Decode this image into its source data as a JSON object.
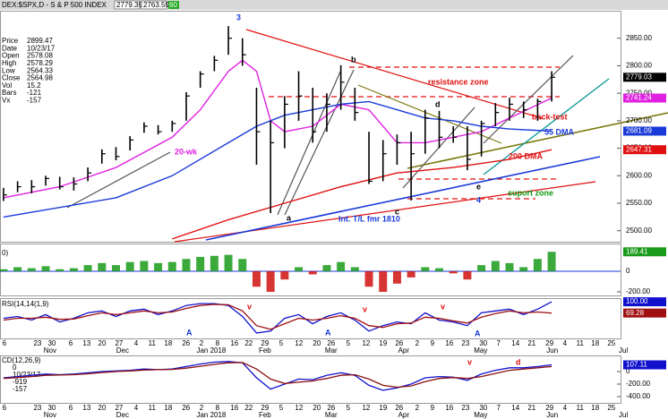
{
  "chart_data": [
    {
      "type": "hlc",
      "title": "DEX:$SPX,D - S & P 500 INDEX",
      "quote": [
        2779.39,
        2763.59
      ],
      "badge": 60,
      "info": [
        {
          "label": "Price",
          "value": 2899.47
        },
        {
          "label": "Date",
          "value": "10/23/17"
        },
        {
          "label": "Open",
          "value": 2578.08
        },
        {
          "label": "High",
          "value": 2578.29
        },
        {
          "label": "Low",
          "value": 2564.33
        },
        {
          "label": "Close",
          "value": 2564.98
        },
        {
          "label": "Vol",
          "value": 15.2
        },
        {
          "label": "Bars",
          "value": -121
        },
        {
          "label": "Vx",
          "value": -157
        }
      ],
      "color": "#000000",
      "high": [
        2578,
        2590,
        2592,
        2600,
        2598,
        2597,
        2615,
        2648,
        2652,
        2672,
        2697,
        2692,
        2700,
        2752,
        2790,
        2818,
        2872,
        2850,
        2760,
        2700,
        2745,
        2790,
        2760,
        2750,
        2801,
        2760,
        2680,
        2665,
        2675,
        2680,
        2720,
        2718,
        2690,
        2690,
        2700,
        2732,
        2742,
        2735,
        2740,
        2790
      ],
      "low": [
        2554,
        2570,
        2568,
        2582,
        2575,
        2573,
        2590,
        2622,
        2628,
        2646,
        2678,
        2675,
        2680,
        2700,
        2760,
        2790,
        2820,
        2800,
        2620,
        2532,
        2650,
        2700,
        2660,
        2680,
        2720,
        2700,
        2585,
        2590,
        2620,
        2555,
        2640,
        2650,
        2660,
        2610,
        2635,
        2690,
        2700,
        2705,
        2700,
        2735
      ],
      "close": [
        2565,
        2580,
        2580,
        2595,
        2580,
        2585,
        2605,
        2640,
        2635,
        2665,
        2690,
        2680,
        2695,
        2745,
        2785,
        2810,
        2850,
        2820,
        2680,
        2660,
        2730,
        2745,
        2680,
        2730,
        2770,
        2715,
        2590,
        2640,
        2660,
        2640,
        2705,
        2670,
        2670,
        2630,
        2695,
        2715,
        2730,
        2720,
        2735,
        2779.03
      ],
      "last": 2779.03,
      "ylim": [
        2480,
        2900
      ],
      "yticks": [
        {
          "value": 2500,
          "label": "2500.00"
        },
        {
          "value": 2550,
          "label": "2550.00"
        },
        {
          "value": 2600,
          "label": "2600.00"
        },
        {
          "value": 2650,
          "label": "2650.00"
        },
        {
          "value": 2700,
          "label": "2700.00"
        },
        {
          "value": 2750,
          "label": "2750.00"
        },
        {
          "value": 2800,
          "label": "2800.00"
        },
        {
          "value": 2850,
          "label": "2850.00"
        }
      ],
      "series": [
        {
          "name": "20-wk",
          "color": "#e020e0",
          "x": [
            0,
            4,
            8,
            12,
            14,
            16,
            17,
            18,
            19,
            20,
            22,
            24,
            26,
            28,
            30,
            32,
            34,
            36,
            39
          ],
          "values": [
            2560,
            2580,
            2615,
            2670,
            2720,
            2790,
            2810,
            2790,
            2700,
            2680,
            2690,
            2730,
            2720,
            2660,
            2660,
            2670,
            2680,
            2705,
            2741.24
          ],
          "last": 2741.24
        },
        {
          "name": "55 DMA",
          "color": "#1a3ad8",
          "x": [
            0,
            8,
            12,
            16,
            18,
            20,
            22,
            24,
            26,
            28,
            30,
            32,
            34,
            36,
            39
          ],
          "values": [
            2525,
            2560,
            2600,
            2660,
            2690,
            2710,
            2720,
            2730,
            2735,
            2720,
            2705,
            2700,
            2690,
            2685,
            2681.09
          ],
          "last": 2681.09
        },
        {
          "name": "200 DMA",
          "color": "#e01010",
          "x": [
            12,
            16,
            20,
            24,
            28,
            32,
            36,
            39
          ],
          "values": [
            2485,
            2520,
            2550,
            2580,
            2605,
            2615,
            2630,
            2647.31
          ],
          "last": 2647.31
        }
      ],
      "annotations": [
        "3",
        "b",
        "a",
        "c",
        "d",
        "e",
        "4",
        "resistance zone",
        "back-test",
        "suport zone",
        "Int. T/L fmr 1810"
      ]
    },
    {
      "type": "bar",
      "title": "0)",
      "pos_color": "#1a9a1a",
      "neg_color": "#d01010",
      "values": [
        20,
        40,
        30,
        50,
        20,
        30,
        60,
        80,
        60,
        90,
        100,
        80,
        90,
        120,
        140,
        150,
        160,
        120,
        -150,
        -200,
        -80,
        40,
        -30,
        60,
        90,
        40,
        -150,
        -200,
        -120,
        -60,
        40,
        30,
        -20,
        -80,
        60,
        100,
        80,
        40,
        120,
        189.41
      ],
      "last": 189.41,
      "ylim": [
        -235,
        270
      ],
      "yticks": [
        0,
        {
          "value": -200,
          "label": "-200.00"
        }
      ]
    },
    {
      "type": "line",
      "title": "RSI(14,14(1,9)",
      "ylim": [
        0,
        110
      ],
      "series": [
        {
          "color": "#1010cc",
          "values": [
            55,
            60,
            50,
            65,
            45,
            55,
            70,
            75,
            60,
            75,
            80,
            65,
            75,
            90,
            95,
            95,
            90,
            60,
            15,
            20,
            55,
            65,
            40,
            60,
            70,
            50,
            20,
            35,
            45,
            40,
            70,
            50,
            45,
            35,
            70,
            75,
            80,
            65,
            80,
            100
          ],
          "last": {
            "value": 100,
            "label": "100.00"
          }
        },
        {
          "color": "#a01010",
          "values": [
            50,
            55,
            55,
            58,
            52,
            53,
            62,
            70,
            65,
            70,
            75,
            70,
            72,
            82,
            90,
            93,
            92,
            75,
            35,
            25,
            40,
            55,
            50,
            55,
            62,
            55,
            35,
            30,
            40,
            42,
            58,
            55,
            48,
            42,
            58,
            68,
            75,
            70,
            72,
            69.28
          ],
          "last": 69.28
        }
      ],
      "markers": [
        "A",
        "v",
        "A",
        "v",
        "v",
        "A"
      ]
    },
    {
      "type": "line",
      "title": "CD(12,26,9)",
      "info": [
        "0",
        "10/23/17",
        "-919",
        "-157"
      ],
      "ylim": [
        -500,
        243
      ],
      "yticks": [
        0,
        {
          "value": -200,
          "label": "-200.00"
        },
        {
          "value": -400,
          "label": "-400.00"
        }
      ],
      "series": [
        {
          "color": "#1010cc",
          "values": [
            -100,
            -80,
            -60,
            -40,
            -50,
            -40,
            -20,
            0,
            10,
            20,
            40,
            30,
            40,
            80,
            120,
            150,
            160,
            140,
            -100,
            -280,
            -200,
            -120,
            -130,
            -60,
            -20,
            -60,
            -220,
            -300,
            -260,
            -200,
            -100,
            -80,
            -90,
            -140,
            -40,
            20,
            60,
            60,
            80,
            107.11
          ],
          "last": 107.11
        },
        {
          "color": "#8a1010",
          "values": [
            -110,
            -95,
            -80,
            -60,
            -55,
            -50,
            -35,
            -15,
            0,
            10,
            25,
            30,
            35,
            55,
            85,
            115,
            140,
            145,
            40,
            -120,
            -190,
            -170,
            -150,
            -110,
            -60,
            -50,
            -120,
            -220,
            -250,
            -230,
            -160,
            -110,
            -95,
            -110,
            -80,
            -30,
            20,
            40,
            60,
            80
          ]
        }
      ],
      "markers": [
        "v",
        "d"
      ]
    }
  ],
  "x_axis": {
    "xlim": [
      -0.25,
      43.9
    ],
    "days": [
      {
        "value": 0.06,
        "label": "6"
      },
      {
        "value": 2.42,
        "label": "23"
      },
      {
        "value": 3.44,
        "label": "30"
      },
      {
        "value": 4.78,
        "label": "6"
      },
      {
        "value": 5.92,
        "label": "13"
      },
      {
        "value": 7.01,
        "label": "20"
      },
      {
        "value": 8.22,
        "label": "27"
      },
      {
        "value": 9.43,
        "label": "4"
      },
      {
        "value": 10.57,
        "label": "11"
      },
      {
        "value": 11.72,
        "label": "18"
      },
      {
        "value": 12.99,
        "label": "26"
      },
      {
        "value": 14.08,
        "label": "2"
      },
      {
        "value": 15.22,
        "label": "8"
      },
      {
        "value": 16.43,
        "label": "16"
      },
      {
        "value": 17.45,
        "label": "22"
      },
      {
        "value": 18.6,
        "label": "29"
      },
      {
        "value": 19.75,
        "label": "5"
      },
      {
        "value": 21.02,
        "label": "12"
      },
      {
        "value": 22.29,
        "label": "20"
      },
      {
        "value": 23.31,
        "label": "26"
      },
      {
        "value": 24.52,
        "label": "5"
      },
      {
        "value": 25.8,
        "label": "12"
      },
      {
        "value": 27.01,
        "label": "19"
      },
      {
        "value": 28.15,
        "label": "26"
      },
      {
        "value": 29.43,
        "label": "2"
      },
      {
        "value": 30.51,
        "label": "9"
      },
      {
        "value": 31.72,
        "label": "16"
      },
      {
        "value": 32.87,
        "label": "23"
      },
      {
        "value": 34.14,
        "label": "30"
      },
      {
        "value": 35.22,
        "label": "7"
      },
      {
        "value": 36.43,
        "label": "14"
      },
      {
        "value": 37.58,
        "label": "21"
      },
      {
        "value": 38.85,
        "label": "29"
      },
      {
        "value": 39.94,
        "label": "4"
      },
      {
        "value": 41.02,
        "label": "11"
      },
      {
        "value": 42.1,
        "label": "18"
      },
      {
        "value": 43.25,
        "label": "25"
      }
    ],
    "months": [
      {
        "value": 3.31,
        "label": "Nov"
      },
      {
        "value": 8.47,
        "label": "Dec"
      },
      {
        "value": 14.78,
        "label": "Jan 2018"
      },
      {
        "value": 18.6,
        "label": "Feb"
      },
      {
        "value": 23.31,
        "label": "Mar"
      },
      {
        "value": 28.47,
        "label": "Apr"
      },
      {
        "value": 33.95,
        "label": "May"
      },
      {
        "value": 39.04,
        "label": "Jun"
      },
      {
        "value": 44.1,
        "label": "Jul"
      }
    ]
  }
}
